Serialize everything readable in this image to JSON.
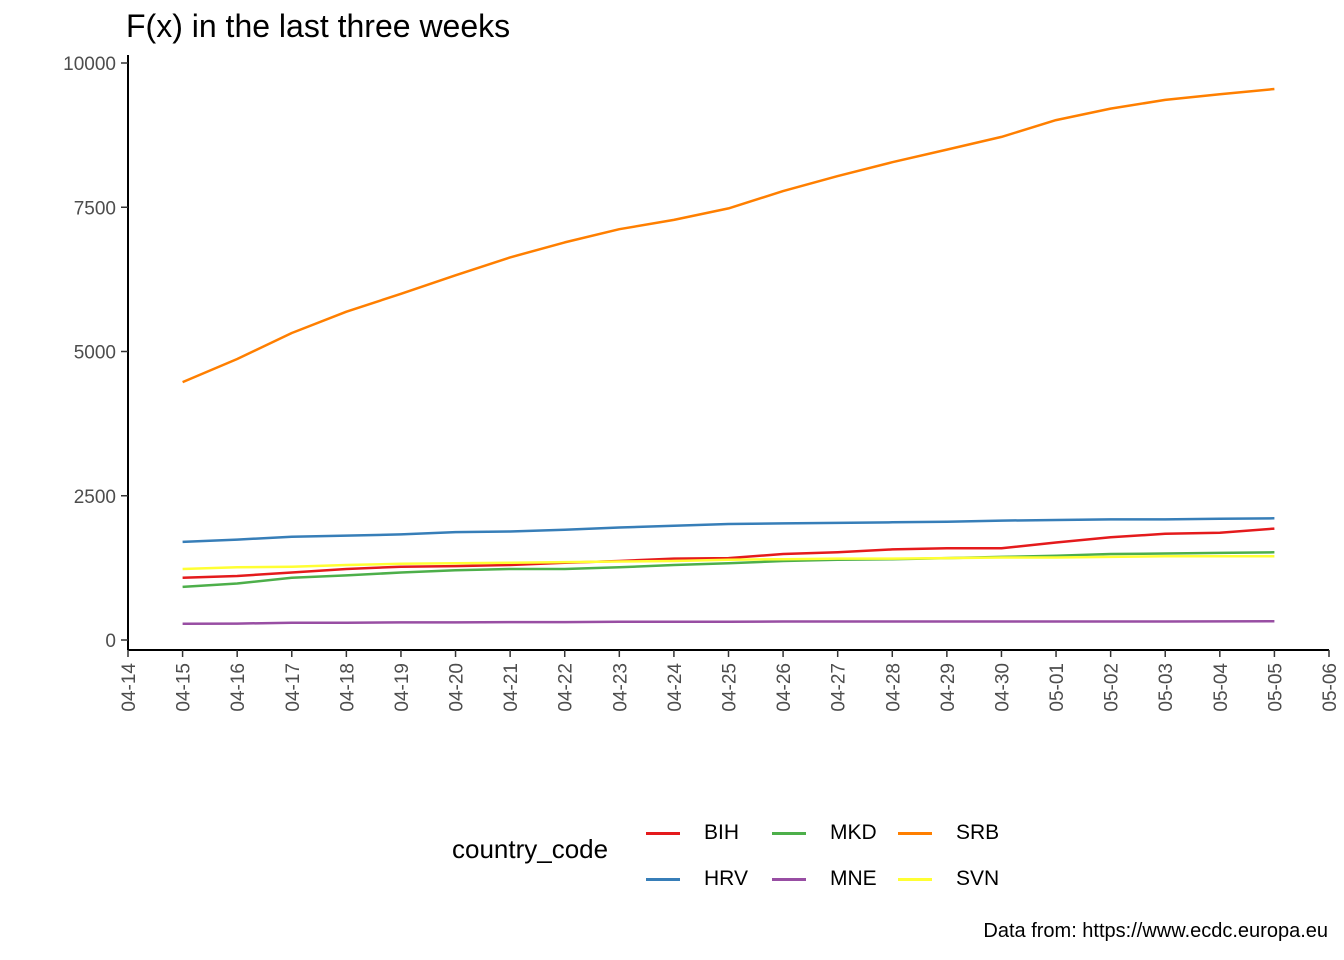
{
  "chart_data": {
    "type": "line",
    "title": "F(x) in the last three weeks",
    "caption": "Data from: https://www.ecdc.europa.eu",
    "xlabel": "",
    "ylabel": "",
    "legend": {
      "title": "country_code",
      "position": "bottom"
    },
    "grid": false,
    "ylim": [
      0,
      10000
    ],
    "yticks": [
      0,
      2500,
      5000,
      7500,
      10000
    ],
    "xlim": [
      "04-14",
      "05-06"
    ],
    "x": [
      "04-14",
      "04-15",
      "04-16",
      "04-17",
      "04-18",
      "04-19",
      "04-20",
      "04-21",
      "04-22",
      "04-23",
      "04-24",
      "04-25",
      "04-26",
      "04-27",
      "04-28",
      "04-29",
      "04-30",
      "05-01",
      "05-02",
      "05-03",
      "05-04",
      "05-05",
      "05-06"
    ],
    "series": [
      {
        "name": "BIH",
        "color": "#E41A1C",
        "x": [
          "04-15",
          "04-16",
          "04-17",
          "04-18",
          "04-19",
          "04-20",
          "04-21",
          "04-22",
          "04-23",
          "04-24",
          "04-25",
          "04-26",
          "04-27",
          "04-28",
          "04-29",
          "04-30",
          "05-01",
          "05-02",
          "05-03",
          "05-04",
          "05-05"
        ],
        "values": [
          1080,
          1110,
          1170,
          1230,
          1270,
          1280,
          1300,
          1340,
          1370,
          1410,
          1420,
          1490,
          1520,
          1570,
          1590,
          1590,
          1690,
          1780,
          1840,
          1860,
          1930
        ]
      },
      {
        "name": "HRV",
        "color": "#377EB8",
        "x": [
          "04-15",
          "04-16",
          "04-17",
          "04-18",
          "04-19",
          "04-20",
          "04-21",
          "04-22",
          "04-23",
          "04-24",
          "04-25",
          "04-26",
          "04-27",
          "04-28",
          "04-29",
          "04-30",
          "05-01",
          "05-02",
          "05-03",
          "05-04",
          "05-05"
        ],
        "values": [
          1700,
          1740,
          1790,
          1810,
          1830,
          1870,
          1880,
          1910,
          1950,
          1980,
          2010,
          2020,
          2030,
          2040,
          2050,
          2070,
          2080,
          2090,
          2090,
          2100,
          2110
        ]
      },
      {
        "name": "MKD",
        "color": "#4DAF4A",
        "x": [
          "04-15",
          "04-16",
          "04-17",
          "04-18",
          "04-19",
          "04-20",
          "04-21",
          "04-22",
          "04-23",
          "04-24",
          "04-25",
          "04-26",
          "04-27",
          "04-28",
          "04-29",
          "04-30",
          "05-01",
          "05-02",
          "05-03",
          "05-04",
          "05-05"
        ],
        "values": [
          920,
          980,
          1080,
          1120,
          1170,
          1210,
          1230,
          1230,
          1260,
          1300,
          1330,
          1370,
          1390,
          1400,
          1420,
          1440,
          1460,
          1490,
          1500,
          1510,
          1520
        ]
      },
      {
        "name": "MNE",
        "color": "#984EA3",
        "x": [
          "04-15",
          "04-16",
          "04-17",
          "04-18",
          "04-19",
          "04-20",
          "04-21",
          "04-22",
          "04-23",
          "04-24",
          "04-25",
          "04-26",
          "04-27",
          "04-28",
          "04-29",
          "04-30",
          "05-01",
          "05-02",
          "05-03",
          "05-04",
          "05-05"
        ],
        "values": [
          280,
          285,
          300,
          300,
          305,
          305,
          310,
          310,
          315,
          318,
          318,
          320,
          320,
          320,
          321,
          321,
          321,
          321,
          321,
          322,
          324
        ]
      },
      {
        "name": "SRB",
        "color": "#FF7F00",
        "x": [
          "04-15",
          "04-16",
          "04-17",
          "04-18",
          "04-19",
          "04-20",
          "04-21",
          "04-22",
          "04-23",
          "04-24",
          "04-25",
          "04-26",
          "04-27",
          "04-28",
          "04-29",
          "04-30",
          "05-01",
          "05-02",
          "05-03",
          "05-04",
          "05-05"
        ],
        "values": [
          4470,
          4870,
          5320,
          5690,
          6000,
          6320,
          6630,
          6890,
          7120,
          7280,
          7480,
          7780,
          8040,
          8280,
          8500,
          8720,
          9010,
          9210,
          9360,
          9460,
          9550
        ]
      },
      {
        "name": "SVN",
        "color": "#FFFF33",
        "x": [
          "04-15",
          "04-16",
          "04-17",
          "04-18",
          "04-19",
          "04-20",
          "04-21",
          "04-22",
          "04-23",
          "04-24",
          "04-25",
          "04-26",
          "04-27",
          "04-28",
          "04-29",
          "04-30",
          "05-01",
          "05-02",
          "05-03",
          "05-04",
          "05-05"
        ],
        "values": [
          1230,
          1260,
          1270,
          1300,
          1320,
          1330,
          1340,
          1350,
          1360,
          1370,
          1390,
          1400,
          1410,
          1410,
          1420,
          1430,
          1430,
          1440,
          1450,
          1450,
          1450
        ]
      }
    ]
  }
}
